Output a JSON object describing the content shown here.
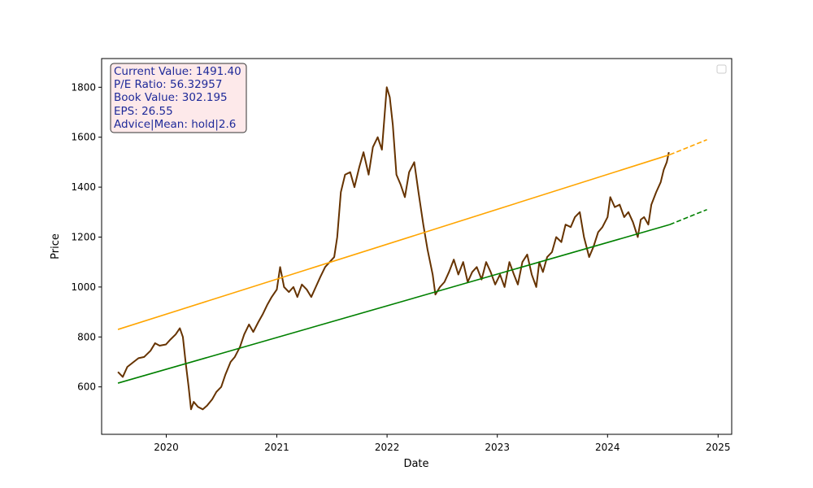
{
  "chart_data": {
    "type": "line",
    "xlabel": "Date",
    "ylabel": "Price",
    "xlim": [
      "2019-06-01",
      "2025-02-15"
    ],
    "ylim": [
      410,
      1915
    ],
    "x_ticks": [
      "2020",
      "2021",
      "2022",
      "2023",
      "2024",
      "2025"
    ],
    "y_ticks": [
      600,
      800,
      1000,
      1200,
      1400,
      1600,
      1800
    ],
    "grid": false,
    "legend": {
      "placement": "top-right",
      "entries": []
    },
    "info_box": {
      "current_value": "Current Value: 1491.40",
      "pe_ratio": "P/E Ratio: 56.32957",
      "book_value": "Book Value: 302.195",
      "eps": "EPS: 26.55",
      "advice": "Advice|Mean: hold|2.6"
    },
    "colors": {
      "price": "#663300",
      "upper_trend": "#ffa500",
      "lower_trend": "#008000",
      "info_box_fill": "#fde9ea",
      "info_text": "#1f2a99"
    },
    "series": [
      {
        "color": "#663300",
        "style": "solid",
        "points": [
          [
            "2019-07-25",
            660
          ],
          [
            "2019-08-10",
            640
          ],
          [
            "2019-08-25",
            680
          ],
          [
            "2019-09-15",
            700
          ],
          [
            "2019-10-01",
            715
          ],
          [
            "2019-10-20",
            720
          ],
          [
            "2019-11-10",
            745
          ],
          [
            "2019-11-25",
            775
          ],
          [
            "2019-12-10",
            765
          ],
          [
            "2019-12-31",
            770
          ],
          [
            "2020-01-15",
            790
          ],
          [
            "2020-02-01",
            810
          ],
          [
            "2020-02-15",
            835
          ],
          [
            "2020-02-25",
            800
          ],
          [
            "2020-03-05",
            700
          ],
          [
            "2020-03-15",
            600
          ],
          [
            "2020-03-23",
            510
          ],
          [
            "2020-04-01",
            540
          ],
          [
            "2020-04-15",
            520
          ],
          [
            "2020-05-01",
            510
          ],
          [
            "2020-05-15",
            525
          ],
          [
            "2020-06-01",
            550
          ],
          [
            "2020-06-15",
            580
          ],
          [
            "2020-07-01",
            600
          ],
          [
            "2020-07-15",
            650
          ],
          [
            "2020-08-01",
            700
          ],
          [
            "2020-08-15",
            720
          ],
          [
            "2020-09-01",
            760
          ],
          [
            "2020-09-15",
            810
          ],
          [
            "2020-10-01",
            850
          ],
          [
            "2020-10-15",
            820
          ],
          [
            "2020-11-01",
            860
          ],
          [
            "2020-11-15",
            890
          ],
          [
            "2020-12-01",
            930
          ],
          [
            "2020-12-15",
            960
          ],
          [
            "2021-01-01",
            990
          ],
          [
            "2021-01-12",
            1080
          ],
          [
            "2021-01-25",
            1000
          ],
          [
            "2021-02-10",
            980
          ],
          [
            "2021-02-25",
            1000
          ],
          [
            "2021-03-10",
            960
          ],
          [
            "2021-03-25",
            1010
          ],
          [
            "2021-04-10",
            990
          ],
          [
            "2021-04-25",
            960
          ],
          [
            "2021-05-10",
            1000
          ],
          [
            "2021-05-25",
            1040
          ],
          [
            "2021-06-10",
            1080
          ],
          [
            "2021-06-25",
            1100
          ],
          [
            "2021-07-10",
            1120
          ],
          [
            "2021-07-20",
            1200
          ],
          [
            "2021-08-01",
            1380
          ],
          [
            "2021-08-15",
            1450
          ],
          [
            "2021-09-01",
            1460
          ],
          [
            "2021-09-15",
            1400
          ],
          [
            "2021-10-01",
            1480
          ],
          [
            "2021-10-15",
            1540
          ],
          [
            "2021-11-01",
            1450
          ],
          [
            "2021-11-15",
            1560
          ],
          [
            "2021-12-01",
            1600
          ],
          [
            "2021-12-15",
            1550
          ],
          [
            "2021-12-31",
            1800
          ],
          [
            "2022-01-10",
            1760
          ],
          [
            "2022-01-20",
            1650
          ],
          [
            "2022-02-01",
            1450
          ],
          [
            "2022-02-15",
            1410
          ],
          [
            "2022-03-01",
            1360
          ],
          [
            "2022-03-15",
            1460
          ],
          [
            "2022-04-01",
            1500
          ],
          [
            "2022-04-15",
            1380
          ],
          [
            "2022-05-01",
            1250
          ],
          [
            "2022-05-15",
            1150
          ],
          [
            "2022-06-01",
            1050
          ],
          [
            "2022-06-10",
            970
          ],
          [
            "2022-06-25",
            1000
          ],
          [
            "2022-07-10",
            1020
          ],
          [
            "2022-07-25",
            1060
          ],
          [
            "2022-08-10",
            1110
          ],
          [
            "2022-08-25",
            1050
          ],
          [
            "2022-09-10",
            1100
          ],
          [
            "2022-09-25",
            1020
          ],
          [
            "2022-10-10",
            1060
          ],
          [
            "2022-10-25",
            1080
          ],
          [
            "2022-11-10",
            1030
          ],
          [
            "2022-11-25",
            1100
          ],
          [
            "2022-12-10",
            1060
          ],
          [
            "2022-12-25",
            1010
          ],
          [
            "2023-01-10",
            1050
          ],
          [
            "2023-01-25",
            1000
          ],
          [
            "2023-02-10",
            1100
          ],
          [
            "2023-02-25",
            1050
          ],
          [
            "2023-03-10",
            1010
          ],
          [
            "2023-03-25",
            1100
          ],
          [
            "2023-04-10",
            1130
          ],
          [
            "2023-04-25",
            1050
          ],
          [
            "2023-05-10",
            1000
          ],
          [
            "2023-05-20",
            1100
          ],
          [
            "2023-06-01",
            1060
          ],
          [
            "2023-06-15",
            1120
          ],
          [
            "2023-07-01",
            1140
          ],
          [
            "2023-07-15",
            1200
          ],
          [
            "2023-08-01",
            1180
          ],
          [
            "2023-08-15",
            1250
          ],
          [
            "2023-09-01",
            1240
          ],
          [
            "2023-09-15",
            1280
          ],
          [
            "2023-10-01",
            1300
          ],
          [
            "2023-10-15",
            1200
          ],
          [
            "2023-11-01",
            1120
          ],
          [
            "2023-11-15",
            1160
          ],
          [
            "2023-12-01",
            1220
          ],
          [
            "2023-12-15",
            1240
          ],
          [
            "2024-01-01",
            1280
          ],
          [
            "2024-01-10",
            1360
          ],
          [
            "2024-01-25",
            1320
          ],
          [
            "2024-02-10",
            1330
          ],
          [
            "2024-02-25",
            1280
          ],
          [
            "2024-03-10",
            1300
          ],
          [
            "2024-03-25",
            1260
          ],
          [
            "2024-04-10",
            1200
          ],
          [
            "2024-04-20",
            1270
          ],
          [
            "2024-05-01",
            1280
          ],
          [
            "2024-05-15",
            1250
          ],
          [
            "2024-05-25",
            1330
          ],
          [
            "2024-06-10",
            1380
          ],
          [
            "2024-06-25",
            1420
          ],
          [
            "2024-07-05",
            1470
          ],
          [
            "2024-07-15",
            1500
          ],
          [
            "2024-07-22",
            1540
          ]
        ]
      },
      {
        "color": "#ffa500",
        "style": "solid",
        "points": [
          [
            "2019-07-25",
            830
          ],
          [
            "2024-07-25",
            1530
          ]
        ]
      },
      {
        "color": "#ffa500",
        "style": "dashed",
        "points": [
          [
            "2024-07-25",
            1530
          ],
          [
            "2024-11-25",
            1590
          ]
        ]
      },
      {
        "color": "#008000",
        "style": "solid",
        "points": [
          [
            "2019-07-25",
            615
          ],
          [
            "2024-07-25",
            1250
          ]
        ]
      },
      {
        "color": "#008000",
        "style": "dashed",
        "points": [
          [
            "2024-07-25",
            1250
          ],
          [
            "2024-11-25",
            1310
          ]
        ]
      }
    ]
  }
}
